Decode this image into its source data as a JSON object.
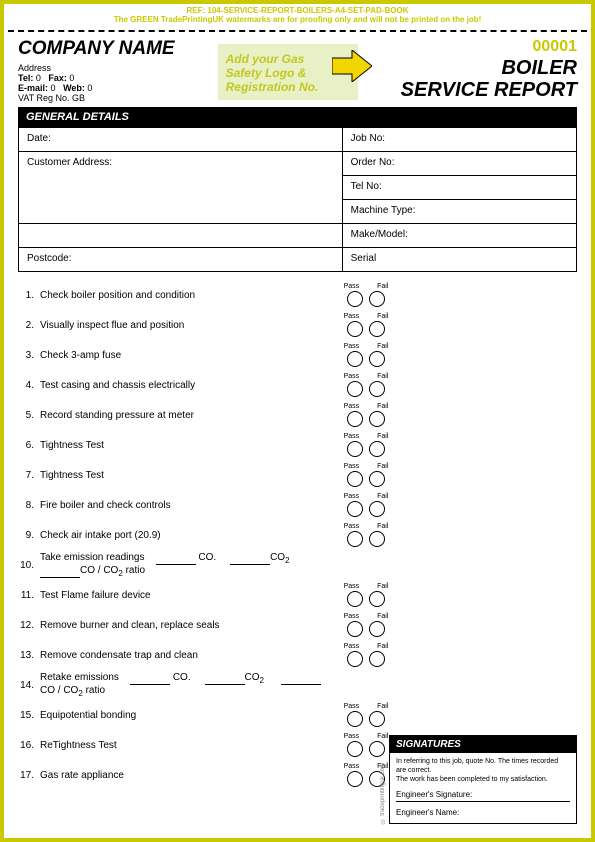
{
  "proof": {
    "ref": "REF: 104-SERVICE-REPORT-BOILERS-A4-SET-PAD-BOOK",
    "note": "The GREEN TradePrintingUK watermarks are for proofing only and will not be printed on the job!"
  },
  "company": {
    "name": "COMPANY NAME",
    "address": "Address",
    "tel_label": "Tel:",
    "tel": "0",
    "fax_label": "Fax:",
    "fax": "0",
    "email_label": "E-mail:",
    "email": "0",
    "web_label": "Web:",
    "web": "0",
    "vat": "VAT Reg No. GB"
  },
  "logo": {
    "line1": "Add your Gas",
    "line2": "Safety Logo &",
    "line3": "Registration No.",
    "box_bg": "#e9f0c5",
    "text_color": "#c2c820",
    "arrow_color": "#f2d600"
  },
  "header": {
    "job_no": "00001",
    "title1": "BOILER",
    "title2": "SERVICE REPORT"
  },
  "general": {
    "heading": "GENERAL DETAILS",
    "left": [
      "Date:",
      "Customer Address:",
      "",
      "",
      "Postcode:"
    ],
    "right": [
      "Job No:",
      "Order No:",
      "Tel No:",
      "Machine Type:",
      "Make/Model:",
      "Serial"
    ]
  },
  "pass_label": "Pass",
  "fail_label": "Fail",
  "checks": [
    {
      "n": "1.",
      "t": "Check boiler position and condition",
      "pf": true
    },
    {
      "n": "2.",
      "t": "Visually inspect flue and position",
      "pf": true
    },
    {
      "n": "3.",
      "t": "Check 3-amp fuse",
      "pf": true
    },
    {
      "n": "4.",
      "t": "Test casing and chassis electrically",
      "pf": true
    },
    {
      "n": "5.",
      "t": "Record standing pressure at meter",
      "pf": true
    },
    {
      "n": "6.",
      "t": "Tightness Test",
      "pf": true
    },
    {
      "n": "7.",
      "t": "Tightness Test",
      "pf": true
    },
    {
      "n": "8.",
      "t": "Fire boiler and check controls",
      "pf": true
    },
    {
      "n": "9.",
      "t": "Check air intake port (20.9)",
      "pf": true
    },
    {
      "n": "10.",
      "t": "Take emission readings",
      "pf": false,
      "em": true
    },
    {
      "n": "11.",
      "t": "Test Flame failure device",
      "pf": true
    },
    {
      "n": "12.",
      "t": "Remove burner and clean, replace seals",
      "pf": true
    },
    {
      "n": "13.",
      "t": "Remove condensate trap and clean",
      "pf": true
    },
    {
      "n": "14.",
      "t": "Retake emissions",
      "pf": false,
      "em": true
    },
    {
      "n": "15.",
      "t": "Equipotential bonding",
      "pf": true
    },
    {
      "n": "16.",
      "t": "ReTightness Test",
      "pf": true
    },
    {
      "n": "17.",
      "t": "Gas rate appliance",
      "pf": true
    }
  ],
  "em": {
    "co_label": "CO.",
    "co2_label_a": "CO",
    "co2_sub": "2",
    "ratio": "CO / CO",
    "ratio_suffix": " ratio"
  },
  "signatures": {
    "heading": "SIGNATURES",
    "note1": "In referring to this job, quote No. The times recorded are correct.",
    "note2": "The work has been completed to my satisfaction.",
    "eng_sig": "Engineer's Signature:",
    "eng_name": "Engineer's Name:"
  },
  "watermark": "",
  "colors": {
    "border": "#c9c900",
    "accent": "#c9c900"
  }
}
